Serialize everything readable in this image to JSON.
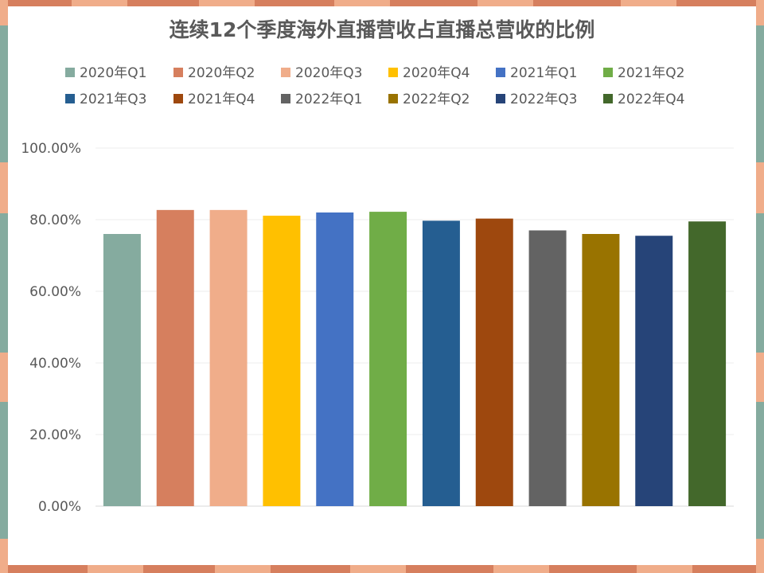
{
  "chart_data": {
    "type": "bar",
    "title": "连续12个季度海外直播营收占直播总营收的比例",
    "xlabel": "",
    "ylabel": "",
    "ylim": [
      0,
      1
    ],
    "y_ticks": [
      "0.00%",
      "20.00%",
      "40.00%",
      "60.00%",
      "80.00%",
      "100.00%"
    ],
    "grid": true,
    "legend_position": "top",
    "categories": [
      "2020年Q1",
      "2020年Q2",
      "2020年Q3",
      "2020年Q4",
      "2021年Q1",
      "2021年Q2",
      "2021年Q3",
      "2021年Q4",
      "2022年Q1",
      "2022年Q2",
      "2022年Q3",
      "2022年Q4"
    ],
    "values": [
      0.76,
      0.827,
      0.827,
      0.811,
      0.82,
      0.822,
      0.797,
      0.803,
      0.77,
      0.76,
      0.755,
      0.795
    ],
    "colors": [
      "#85ab9f",
      "#d67f5e",
      "#f0ad8a",
      "#ffc000",
      "#4472c4",
      "#70ad47",
      "#255e91",
      "#9e480e",
      "#636363",
      "#997300",
      "#264478",
      "#43682b"
    ]
  },
  "frame": {
    "stripe_color": "#d67f5e",
    "stripe_light_color": "#f0ad8a",
    "tab_color": "#85ab9f"
  }
}
